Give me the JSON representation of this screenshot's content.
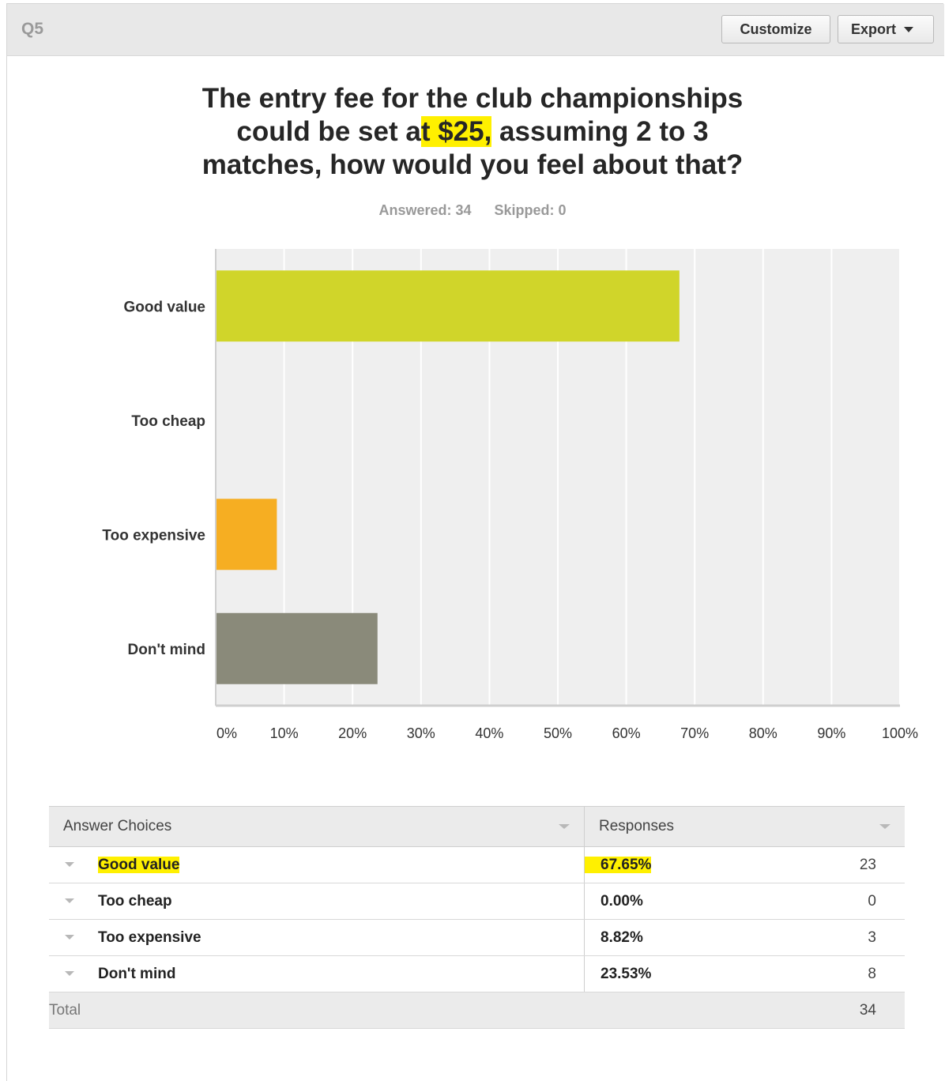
{
  "header": {
    "question_number": "Q5",
    "customize_label": "Customize",
    "export_label": "Export"
  },
  "question": {
    "title_part1": "The entry fee for the club championships could be set a",
    "title_highlight": "t $25,",
    "title_part2": " assuming 2 to 3 matches, how would you feel about that?"
  },
  "stats": {
    "answered": "Answered: 34",
    "skipped": "Skipped: 0"
  },
  "chart_data": {
    "type": "bar",
    "orientation": "horizontal",
    "categories": [
      "Good value",
      "Too cheap",
      "Too expensive",
      "Don't mind"
    ],
    "values": [
      67.65,
      0.0,
      8.82,
      23.53
    ],
    "colors": [
      "#d0d52a",
      "#e9e9e9",
      "#f6ae22",
      "#8a8a7a"
    ],
    "xlim": [
      0,
      100
    ],
    "ticks": [
      "0%",
      "10%",
      "20%",
      "30%",
      "40%",
      "50%",
      "60%",
      "70%",
      "80%",
      "90%",
      "100%"
    ],
    "grid": true,
    "background": "#efefef"
  },
  "table": {
    "headers": [
      "Answer Choices",
      "Responses"
    ],
    "rows": [
      {
        "choice": "Good value",
        "percent": "67.65%",
        "count": "23",
        "highlight": true
      },
      {
        "choice": "Too cheap",
        "percent": "0.00%",
        "count": "0",
        "highlight": false
      },
      {
        "choice": "Too expensive",
        "percent": "8.82%",
        "count": "3",
        "highlight": false
      },
      {
        "choice": "Don't mind",
        "percent": "23.53%",
        "count": "8",
        "highlight": false
      }
    ],
    "total_label": "Total",
    "total_count": "34"
  },
  "colors": {
    "highlight": "#fff000",
    "topbar": "#e8e8e8"
  }
}
